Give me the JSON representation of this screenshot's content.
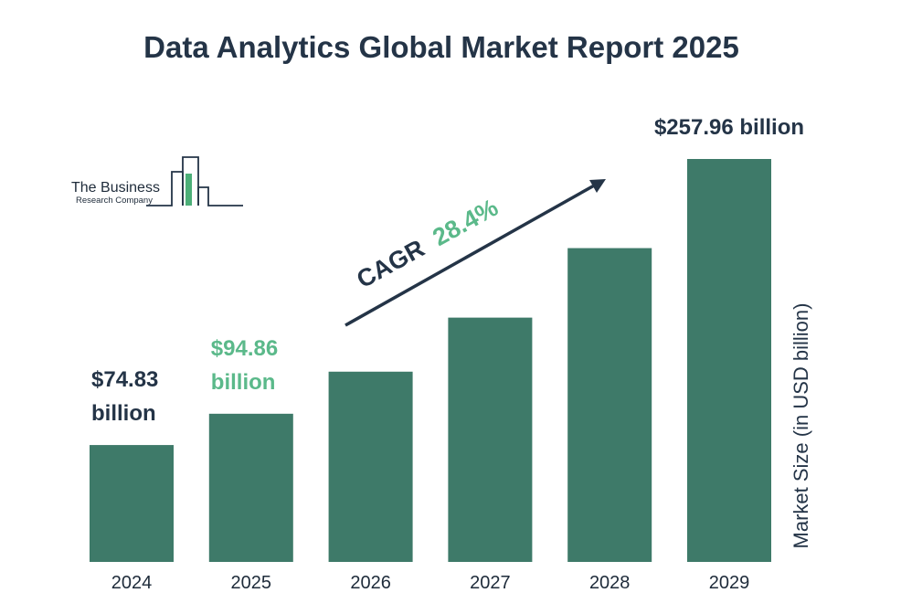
{
  "colors": {
    "bar": "#3e7a69",
    "dark_text": "#243447",
    "highlight": "#5bb98a",
    "logo_line": "#243447",
    "logo_accent": "#4caf78"
  },
  "logo": {
    "line1": "The Business",
    "line2": "Research Company"
  },
  "chart_data": {
    "type": "bar",
    "title": "Data Analytics Global Market Report 2025",
    "ylabel": "Market Size (in USD billion)",
    "xlabel": "",
    "categories": [
      "2024",
      "2025",
      "2026",
      "2027",
      "2028",
      "2029"
    ],
    "values": [
      74.83,
      94.86,
      121.8,
      156.4,
      200.9,
      257.96
    ],
    "ylim": [
      0,
      260
    ],
    "grid": false,
    "data_labels": [
      {
        "index": 0,
        "lines": [
          "$74.83",
          "billion"
        ],
        "style": "dark"
      },
      {
        "index": 1,
        "lines": [
          "$94.86",
          "billion"
        ],
        "style": "highlight"
      },
      {
        "index": 5,
        "lines": [
          "$257.96 billion"
        ],
        "style": "dark"
      }
    ],
    "annotation": {
      "prefix": "CAGR",
      "value": "28.4%"
    }
  }
}
